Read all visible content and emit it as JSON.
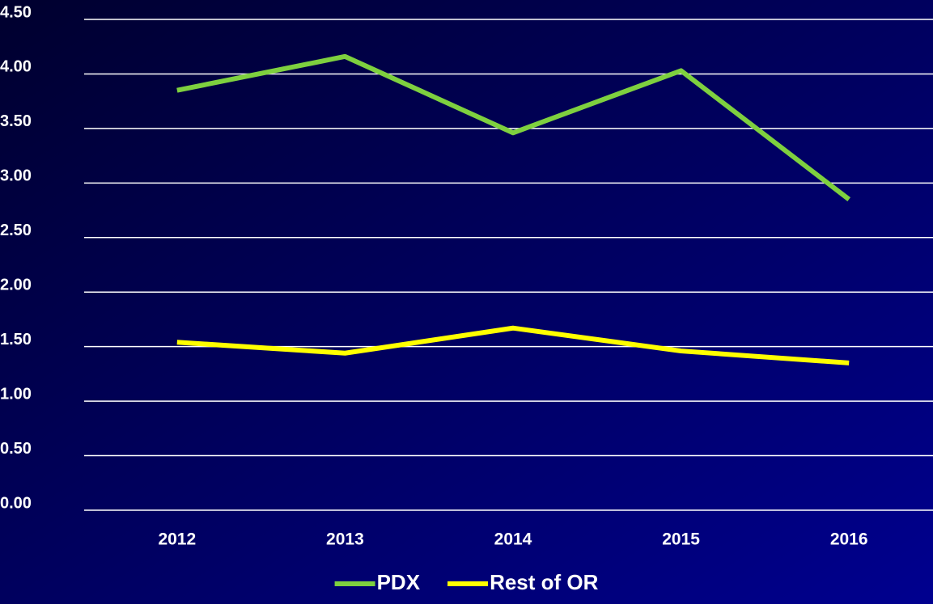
{
  "chart_data": {
    "type": "line",
    "categories": [
      "2012",
      "2013",
      "2014",
      "2015",
      "2016"
    ],
    "series": [
      {
        "name": "PDX",
        "color": "#7ed03f",
        "values": [
          3.85,
          4.16,
          3.46,
          4.03,
          2.85
        ]
      },
      {
        "name": "Rest of OR",
        "color": "#ffff00",
        "values": [
          1.54,
          1.44,
          1.67,
          1.46,
          1.35
        ]
      }
    ],
    "ylim": [
      0,
      4.5
    ],
    "yticks": [
      {
        "value": 0,
        "label": "0.00"
      },
      {
        "value": 0.5,
        "label": "0.50"
      },
      {
        "value": 1,
        "label": "1.00"
      },
      {
        "value": 1.5,
        "label": "1.50"
      },
      {
        "value": 2,
        "label": "2.00"
      },
      {
        "value": 2.5,
        "label": "2.50"
      },
      {
        "value": 3,
        "label": "3.00"
      },
      {
        "value": 3.5,
        "label": "3.50"
      },
      {
        "value": 4,
        "label": "4.00"
      },
      {
        "value": 4.5,
        "label": "4.50"
      }
    ],
    "grid": true,
    "legend": "bottom"
  }
}
